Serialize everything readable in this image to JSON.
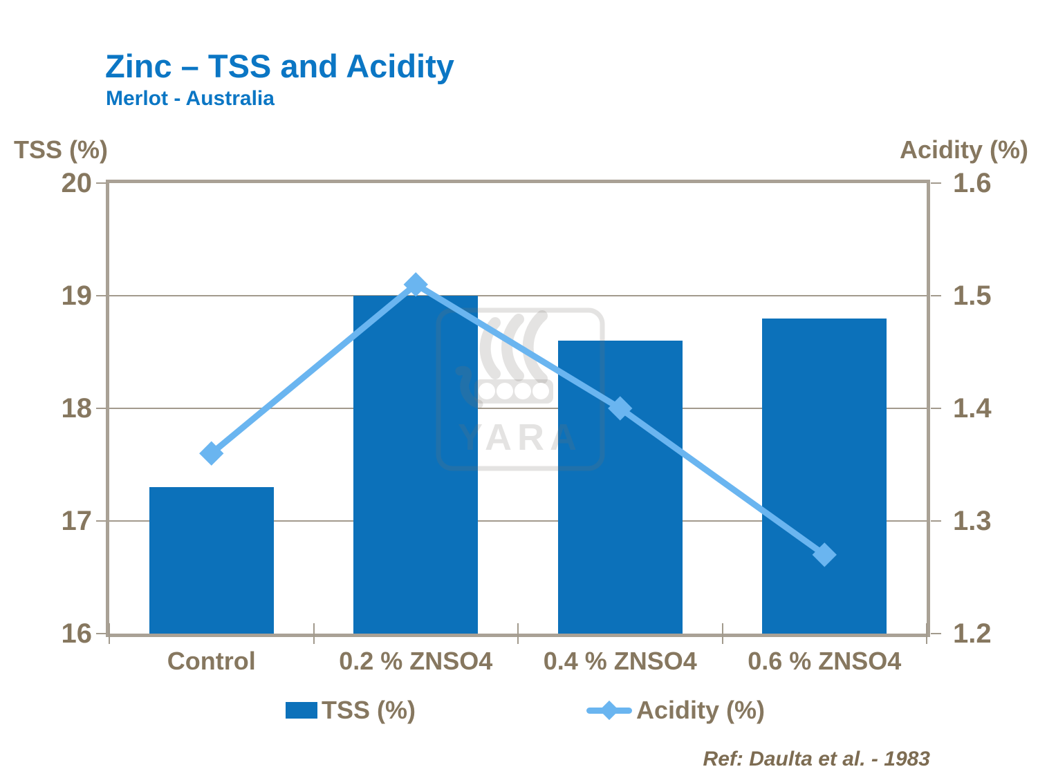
{
  "header": {
    "title": "Zinc – TSS and Acidity",
    "subtitle": "Merlot - Australia"
  },
  "watermark": {
    "text": "YARA"
  },
  "footer": {
    "reference": "Ref: Daulta et al. - 1983"
  },
  "colors": {
    "title_blue": "#0b76c4",
    "bar_blue": "#0c71ba",
    "line_blue": "#6ab5f0",
    "axis_text": "#86775f",
    "footer_text": "#7d6c52",
    "plot_border": "#a9a195",
    "gridline": "#a29a8d",
    "watermark_gray": "rgba(122,117,110,0.20)"
  },
  "chart_data": {
    "type": "bar",
    "categories": [
      "Control",
      "0.2 % ZNSO4",
      "0.4 % ZNSO4",
      "0.6 % ZNSO4"
    ],
    "series": [
      {
        "name": "TSS (%)",
        "type": "bar",
        "axis": "left",
        "color_key": "bar_blue",
        "values": [
          17.3,
          19.0,
          18.6,
          18.8
        ]
      },
      {
        "name": "Acidity (%)",
        "type": "line",
        "marker": "diamond",
        "axis": "right",
        "color_key": "line_blue",
        "values": [
          1.36,
          1.51,
          1.4,
          1.27
        ]
      }
    ],
    "left_axis": {
      "label": "TSS (%)",
      "min": 16,
      "max": 20,
      "ticks": [
        20,
        19,
        18,
        17,
        16
      ]
    },
    "right_axis": {
      "label": "Acidity (%)",
      "min": 1.2,
      "max": 1.6,
      "ticks": [
        1.6,
        1.5,
        1.4,
        1.3,
        1.2
      ]
    },
    "grid": true,
    "legend_position": "bottom"
  }
}
